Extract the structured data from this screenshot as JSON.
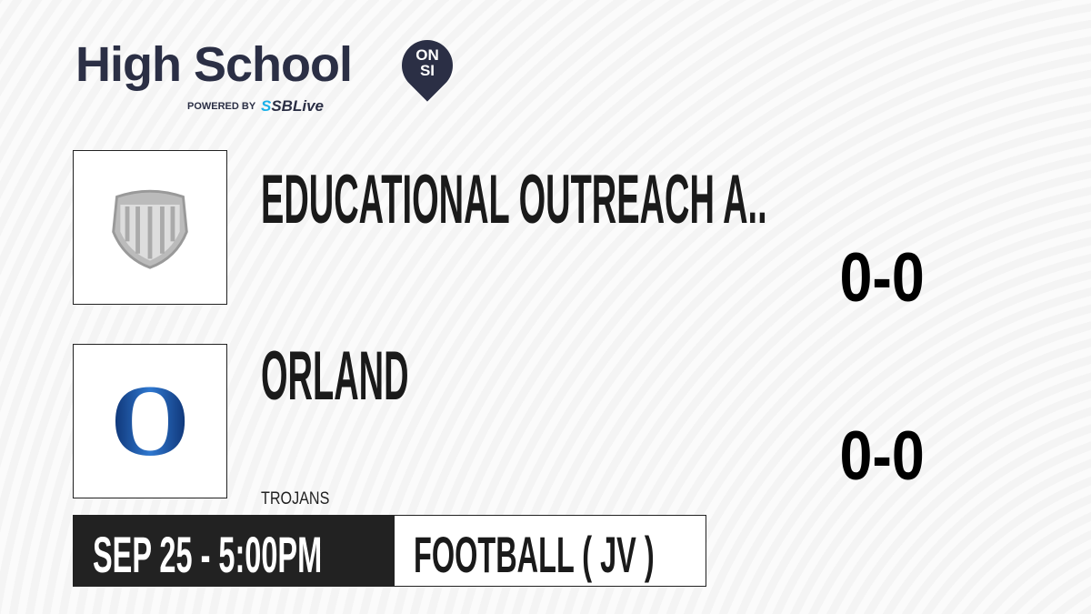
{
  "brand": {
    "title": "High School",
    "badge_top": "ON",
    "badge_bottom": "SI",
    "powered_by": "POWERED BY",
    "partner_mark": "S",
    "partner": "SBLive",
    "accent": "#1ab0e8",
    "dark": "#2b2f45"
  },
  "teams": [
    {
      "name": "EDUCATIONAL OUTREACH A..",
      "score": "0-0",
      "logo_icon": "shield-icon"
    },
    {
      "name": "ORLAND",
      "score": "0-0",
      "mascot": "TROJANS",
      "logo_letter": "O",
      "logo_icon": "orland-o-logo"
    }
  ],
  "game": {
    "datetime": "SEP 25 - 5:00PM",
    "sport": "FOOTBALL ( JV )"
  }
}
